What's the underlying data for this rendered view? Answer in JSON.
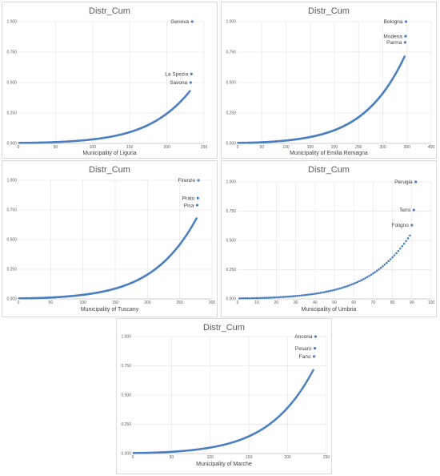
{
  "chart_data": [
    {
      "id": "liguria",
      "type": "scatter",
      "title": "Distr_Cum",
      "xlabel": "Municipality of Liguria",
      "xlim": [
        0,
        250
      ],
      "ylim": [
        0,
        1
      ],
      "xticks": [
        "0",
        "50",
        "100",
        "150",
        "200",
        "250"
      ],
      "yticks": [
        "0.000",
        "0.250",
        "0.500",
        "0.750",
        "1.000"
      ],
      "n": 234,
      "tail_points": [
        {
          "x": 232,
          "y": 0.5,
          "label": "Savona"
        },
        {
          "x": 233,
          "y": 0.57,
          "label": "La Spezia"
        },
        {
          "x": 234,
          "y": 1.0,
          "label": "Genova"
        }
      ]
    },
    {
      "id": "emilia",
      "type": "scatter",
      "title": "Distr_Cum",
      "xlabel": "Municipality of Emilia Romagna",
      "xlim": [
        0,
        400
      ],
      "ylim": [
        0,
        1
      ],
      "xticks": [
        "0",
        "50",
        "100",
        "150",
        "200",
        "250",
        "300",
        "350",
        "400"
      ],
      "yticks": [
        "0.000",
        "0.250",
        "0.500",
        "0.750",
        "1.000"
      ],
      "n": 348,
      "tail_points": [
        {
          "x": 346,
          "y": 0.83,
          "label": "Parma"
        },
        {
          "x": 347,
          "y": 0.88,
          "label": "Modena"
        },
        {
          "x": 348,
          "y": 1.0,
          "label": "Bologna"
        }
      ]
    },
    {
      "id": "tuscany",
      "type": "scatter",
      "title": "Distr_Cum",
      "xlabel": "Municipality of Tuscany",
      "xlim": [
        0,
        300
      ],
      "ylim": [
        0,
        1
      ],
      "xticks": [
        "0",
        "50",
        "100",
        "150",
        "200",
        "250",
        "300"
      ],
      "yticks": [
        "0.000",
        "0.250",
        "0.500",
        "0.750",
        "1.000"
      ],
      "n": 279,
      "tail_points": [
        {
          "x": 277,
          "y": 0.79,
          "label": "Pisa"
        },
        {
          "x": 278,
          "y": 0.85,
          "label": "Prato"
        },
        {
          "x": 279,
          "y": 1.0,
          "label": "Firenze"
        }
      ]
    },
    {
      "id": "umbria",
      "type": "scatter",
      "title": "Distr_Cum",
      "xlabel": "Municipality of Umbria",
      "xlim": [
        0,
        100
      ],
      "ylim": [
        0,
        1
      ],
      "xticks": [
        "0",
        "10",
        "20",
        "30",
        "40",
        "50",
        "60",
        "70",
        "80",
        "90",
        "100"
      ],
      "yticks": [
        "0.000",
        "0.250",
        "0.500",
        "0.750",
        "1.000"
      ],
      "n": 92,
      "tail_points": [
        {
          "x": 90,
          "y": 0.63,
          "label": "Foligno"
        },
        {
          "x": 91,
          "y": 0.76,
          "label": "Terni"
        },
        {
          "x": 92,
          "y": 1.0,
          "label": "Perugia"
        }
      ]
    },
    {
      "id": "marche",
      "type": "scatter",
      "title": "Distr_Cum",
      "xlabel": "Municipality of Marche",
      "xlim": [
        0,
        250
      ],
      "ylim": [
        0,
        1
      ],
      "xticks": [
        "0",
        "50",
        "100",
        "150",
        "200",
        "250"
      ],
      "yticks": [
        "0.000",
        "0.250",
        "0.500",
        "0.750",
        "1.000"
      ],
      "n": 236,
      "tail_points": [
        {
          "x": 234,
          "y": 0.83,
          "label": "Fano"
        },
        {
          "x": 235,
          "y": 0.9,
          "label": "Pesaro"
        },
        {
          "x": 236,
          "y": 1.0,
          "label": "Ancona"
        }
      ]
    }
  ]
}
